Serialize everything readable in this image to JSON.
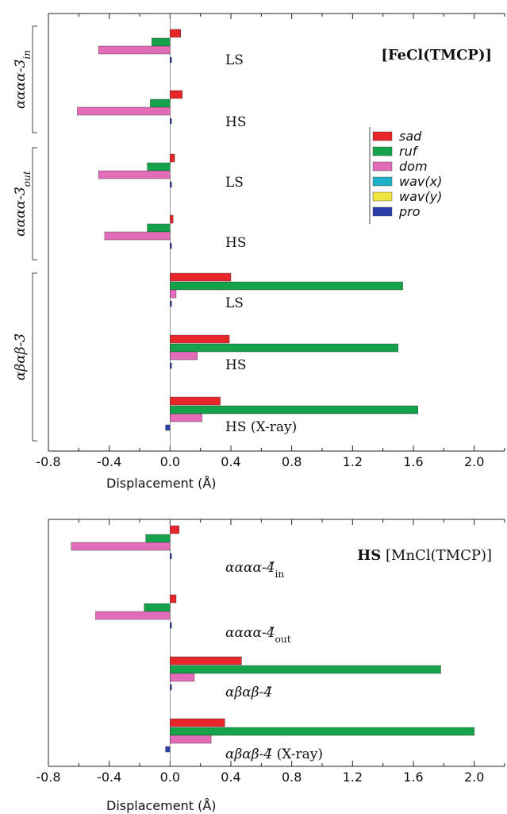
{
  "colors": {
    "sad": "#e8262a",
    "ruf": "#14a34a",
    "dom": "#e36cb8",
    "wav_x": "#20b2c8",
    "wav_y": "#f0e442",
    "pro": "#2a3fa8"
  },
  "legend_labels": [
    "sad",
    "ruf",
    "dom",
    "wav(x)",
    "wav(y)",
    "pro"
  ],
  "chart_data": [
    {
      "type": "bar",
      "orientation": "horizontal",
      "title": "[FeCl(TMCP)]",
      "xlabel": "Displacement (Å)",
      "xlim": [
        -0.8,
        2.2
      ],
      "xticks": [
        -0.8,
        -0.4,
        0.0,
        0.4,
        0.8,
        1.2,
        1.6,
        2.0
      ],
      "xtick_labels": [
        "-0.8",
        "-0.4",
        "0.0",
        "0.4",
        "0.8",
        "1.2",
        "1.6",
        "2.0"
      ],
      "legend_position": "upper-right",
      "series_order": [
        "sad",
        "ruf",
        "dom",
        "wav_x",
        "wav_y",
        "pro"
      ],
      "groups": [
        {
          "label_main": "αααα-3̈",
          "label_sub": "in",
          "categories": [
            {
              "label": "LS",
              "values": {
                "sad": 0.07,
                "ruf": -0.12,
                "dom": -0.47,
                "wav_x": 0.0,
                "wav_y": 0.0,
                "pro": 0.01
              }
            },
            {
              "label": "HS",
              "values": {
                "sad": 0.08,
                "ruf": -0.13,
                "dom": -0.61,
                "wav_x": 0.0,
                "wav_y": 0.0,
                "pro": 0.0
              }
            }
          ]
        },
        {
          "label_main": "αααα-3̈",
          "label_sub": "out",
          "categories": [
            {
              "label": "LS",
              "values": {
                "sad": 0.03,
                "ruf": -0.15,
                "dom": -0.47,
                "wav_x": 0.0,
                "wav_y": 0.0,
                "pro": 0.01
              }
            },
            {
              "label": "HS",
              "values": {
                "sad": 0.02,
                "ruf": -0.15,
                "dom": -0.43,
                "wav_x": 0.0,
                "wav_y": 0.0,
                "pro": 0.01
              }
            }
          ]
        },
        {
          "label_main": "αβαβ-3̈",
          "label_sub": "",
          "categories": [
            {
              "label": "LS",
              "values": {
                "sad": 0.4,
                "ruf": 1.53,
                "dom": 0.04,
                "wav_x": 0.0,
                "wav_y": 0.0,
                "pro": 0.01
              }
            },
            {
              "label": "HS",
              "values": {
                "sad": 0.39,
                "ruf": 1.5,
                "dom": 0.18,
                "wav_x": 0.0,
                "wav_y": 0.0,
                "pro": 0.0
              }
            },
            {
              "label": "HS (X-ray)",
              "values": {
                "sad": 0.33,
                "ruf": 1.63,
                "dom": 0.21,
                "wav_x": 0.0,
                "wav_y": 0.0,
                "pro": -0.03
              }
            }
          ]
        }
      ]
    },
    {
      "type": "bar",
      "orientation": "horizontal",
      "title": "HS [MnCl(TMCP)]",
      "title_bold_part": "HS",
      "title_rest": "[MnCl(TMCP)]",
      "xlabel": "Displacement (Å)",
      "xlim": [
        -0.8,
        2.2
      ],
      "xticks": [
        -0.8,
        -0.4,
        0.0,
        0.4,
        0.8,
        1.2,
        1.6,
        2.0
      ],
      "xtick_labels": [
        "-0.8",
        "-0.4",
        "0.0",
        "0.4",
        "0.8",
        "1.2",
        "1.6",
        "2.0"
      ],
      "series_order": [
        "sad",
        "ruf",
        "dom",
        "wav_x",
        "wav_y",
        "pro"
      ],
      "categories": [
        {
          "label_main": "αααα-4̈",
          "label_sub": "in",
          "label_suffix": "",
          "values": {
            "sad": 0.06,
            "ruf": -0.16,
            "dom": -0.65,
            "wav_x": 0.0,
            "wav_y": 0.0,
            "pro": 0.01
          }
        },
        {
          "label_main": "αααα-4̈",
          "label_sub": "out",
          "label_suffix": "",
          "values": {
            "sad": 0.04,
            "ruf": -0.17,
            "dom": -0.49,
            "wav_x": 0.0,
            "wav_y": 0.0,
            "pro": 0.01
          }
        },
        {
          "label_main": "αβαβ-4̈",
          "label_sub": "",
          "label_suffix": "",
          "values": {
            "sad": 0.47,
            "ruf": 1.78,
            "dom": 0.16,
            "wav_x": 0.0,
            "wav_y": 0.0,
            "pro": 0.0
          }
        },
        {
          "label_main": "αβαβ-4̈",
          "label_sub": "",
          "label_suffix": " (X-ray)",
          "values": {
            "sad": 0.36,
            "ruf": 2.0,
            "dom": 0.27,
            "wav_x": 0.0,
            "wav_y": 0.0,
            "pro": -0.03
          }
        }
      ]
    }
  ]
}
